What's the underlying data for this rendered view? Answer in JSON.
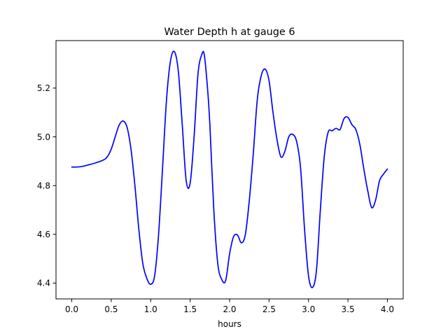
{
  "chart_data": {
    "type": "line",
    "title": "Water Depth h at gauge 6",
    "xlabel": "hours",
    "ylabel": "",
    "xlim": [
      -0.2,
      4.2
    ],
    "ylim": [
      4.335,
      5.395
    ],
    "xticks": [
      0.0,
      0.5,
      1.0,
      1.5,
      2.0,
      2.5,
      3.0,
      3.5,
      4.0
    ],
    "xtick_labels": [
      "0.0",
      "0.5",
      "1.0",
      "1.5",
      "2.0",
      "2.5",
      "3.0",
      "3.5",
      "4.0"
    ],
    "yticks": [
      4.4,
      4.6,
      4.8,
      5.0,
      5.2
    ],
    "ytick_labels": [
      "4.4",
      "4.6",
      "4.8",
      "5.0",
      "5.2"
    ],
    "grid": false,
    "series": [
      {
        "color": "#0000ff",
        "x": [
          0.0,
          0.1,
          0.2,
          0.3,
          0.4,
          0.45,
          0.5,
          0.55,
          0.6,
          0.65,
          0.7,
          0.75,
          0.8,
          0.85,
          0.9,
          0.95,
          1.0,
          1.05,
          1.1,
          1.15,
          1.2,
          1.25,
          1.3,
          1.35,
          1.4,
          1.45,
          1.5,
          1.55,
          1.6,
          1.65,
          1.68,
          1.72,
          1.75,
          1.8,
          1.85,
          1.9,
          1.95,
          2.0,
          2.05,
          2.1,
          2.15,
          2.2,
          2.25,
          2.3,
          2.35,
          2.4,
          2.45,
          2.5,
          2.55,
          2.6,
          2.65,
          2.7,
          2.75,
          2.8,
          2.85,
          2.9,
          2.95,
          3.0,
          3.05,
          3.1,
          3.15,
          3.2,
          3.25,
          3.3,
          3.35,
          3.4,
          3.45,
          3.5,
          3.55,
          3.6,
          3.65,
          3.7,
          3.75,
          3.8,
          3.85,
          3.9,
          3.95,
          4.0
        ],
        "y": [
          4.876,
          4.877,
          4.884,
          4.893,
          4.905,
          4.918,
          4.95,
          5.0,
          5.048,
          5.065,
          5.04,
          4.95,
          4.8,
          4.62,
          4.48,
          4.42,
          4.395,
          4.43,
          4.6,
          4.87,
          5.15,
          5.31,
          5.35,
          5.27,
          5.05,
          4.82,
          4.81,
          5.0,
          5.26,
          5.34,
          5.335,
          5.2,
          5.05,
          4.7,
          4.48,
          4.415,
          4.41,
          4.52,
          4.59,
          4.597,
          4.565,
          4.6,
          4.74,
          4.93,
          5.15,
          5.25,
          5.278,
          5.23,
          5.1,
          4.99,
          4.918,
          4.94,
          5.0,
          5.01,
          4.98,
          4.87,
          4.62,
          4.43,
          4.382,
          4.45,
          4.7,
          4.92,
          5.02,
          5.025,
          5.035,
          5.03,
          5.075,
          5.08,
          5.05,
          5.03,
          4.97,
          4.87,
          4.78,
          4.71,
          4.74,
          4.82,
          4.847,
          4.868
        ]
      }
    ]
  }
}
